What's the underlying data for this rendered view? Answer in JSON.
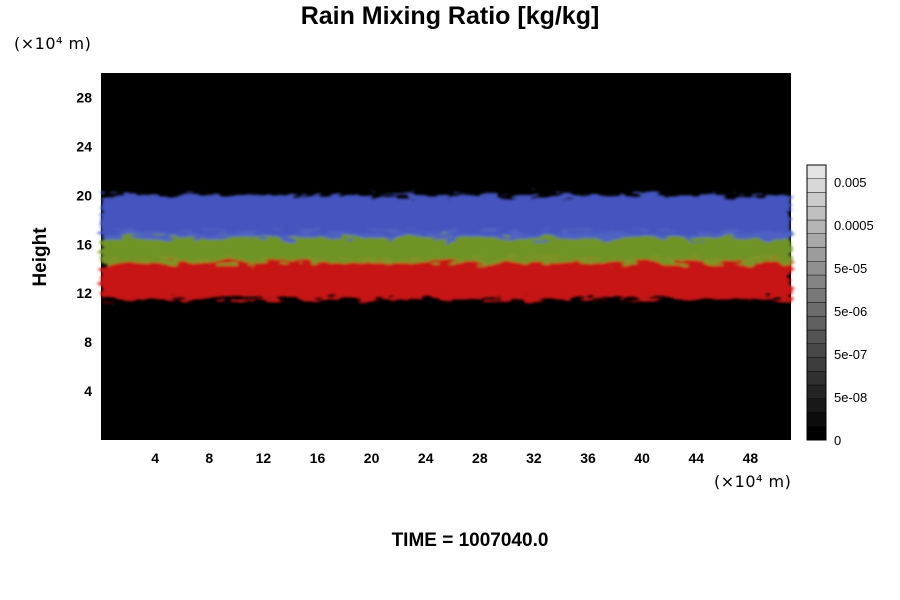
{
  "chart_data": {
    "type": "heatmap",
    "title": "Rain Mixing Ratio [kg/kg]",
    "ylabel": "Height",
    "y_unit": "(×10⁴ m)",
    "x_unit": "(×10⁴ m)",
    "x_ticks": [
      "4",
      "8",
      "12",
      "16",
      "20",
      "24",
      "28",
      "32",
      "36",
      "40",
      "44",
      "48"
    ],
    "y_ticks": [
      "4",
      "8",
      "12",
      "16",
      "20",
      "24",
      "28"
    ],
    "xlim": [
      0,
      51
    ],
    "ylim": [
      0,
      30
    ],
    "colorbar_labels": [
      "0",
      "5e-08",
      "5e-07",
      "5e-06",
      "5e-05",
      "0.0005",
      "0.005"
    ],
    "colorbar_levels": 20,
    "background_color": "#000000",
    "bands": [
      {
        "color": "#d81414",
        "y_range": [
          11.5,
          14.8
        ]
      },
      {
        "color": "#7aa028",
        "y_range": [
          14.5,
          17.0
        ]
      },
      {
        "color": "#4a5ccf",
        "y_range": [
          16.5,
          20.0
        ]
      }
    ]
  },
  "time_label": "TIME = 1007040.0"
}
